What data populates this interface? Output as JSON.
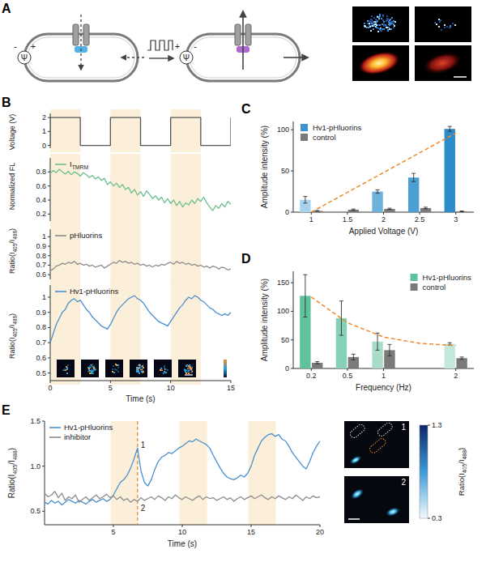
{
  "panel_labels": [
    "A",
    "B",
    "C",
    "D",
    "E"
  ],
  "schematic": {
    "minus": "-",
    "plus": "+",
    "potential": "Ψ"
  },
  "chart_data": [
    {
      "type": "line",
      "y_label": "Voltage (V)",
      "x": [
        0,
        0,
        2.5,
        2.5,
        5,
        5,
        7.5,
        7.5,
        10,
        10,
        12.5,
        12.5,
        15,
        15
      ],
      "series": [
        {
          "color": "#555555",
          "values": [
            0,
            2,
            2,
            0,
            0,
            2,
            2,
            0,
            0,
            2,
            2,
            0,
            0,
            2
          ]
        }
      ],
      "xlim": [
        0,
        15
      ],
      "ylim": [
        -0.2,
        2.3
      ],
      "yticks": [
        0,
        1,
        2
      ],
      "tick_labels": "y",
      "stimulus_intervals": [
        [
          0,
          2.5
        ],
        [
          5,
          7.5
        ],
        [
          10,
          12.5
        ]
      ]
    },
    {
      "type": "line",
      "y_label": "Normalized FL",
      "x": [
        0,
        0.25,
        0.5,
        0.75,
        1,
        1.25,
        1.5,
        1.75,
        2,
        2.25,
        2.5,
        2.75,
        3,
        3.25,
        3.5,
        3.75,
        4,
        4.25,
        4.5,
        4.75,
        5,
        5.25,
        5.5,
        5.75,
        6,
        6.25,
        6.5,
        6.75,
        7,
        7.25,
        7.5,
        7.75,
        8,
        8.25,
        8.5,
        8.75,
        9,
        9.25,
        9.5,
        9.75,
        10,
        10.25,
        10.5,
        10.75,
        11,
        11.25,
        11.5,
        11.75,
        12,
        12.25,
        12.5,
        12.75,
        13,
        13.25,
        13.5,
        13.75,
        14,
        14.25,
        14.5,
        14.75,
        15
      ],
      "series": [
        {
          "name": "ITMRM",
          "color": "#6cbf8f",
          "values": [
            0.78,
            0.82,
            0.79,
            0.84,
            0.8,
            0.77,
            0.81,
            0.76,
            0.8,
            0.78,
            0.74,
            0.79,
            0.76,
            0.72,
            0.75,
            0.7,
            0.73,
            0.68,
            0.71,
            0.62,
            0.66,
            0.6,
            0.64,
            0.58,
            0.62,
            0.55,
            0.58,
            0.5,
            0.55,
            0.47,
            0.52,
            0.45,
            0.53,
            0.48,
            0.42,
            0.46,
            0.4,
            0.44,
            0.36,
            0.42,
            0.35,
            0.4,
            0.32,
            0.38,
            0.3,
            0.36,
            0.33,
            0.4,
            0.35,
            0.42,
            0.38,
            0.44,
            0.36,
            0.3,
            0.25,
            0.32,
            0.28,
            0.35,
            0.3,
            0.38,
            0.34
          ]
        }
      ],
      "xlim": [
        0,
        15
      ],
      "ylim": [
        0.1,
        1.0
      ],
      "yticks": [
        0.2,
        0.4,
        0.6,
        0.8
      ],
      "tick_labels": "y",
      "legend": "upper left",
      "stimulus_intervals": [
        [
          0,
          2.5
        ],
        [
          5,
          7.5
        ],
        [
          10,
          12.5
        ]
      ]
    },
    {
      "type": "line",
      "y_label": "Ratio(I405/I488)",
      "x": [
        0,
        0.25,
        0.5,
        0.75,
        1,
        1.25,
        1.5,
        1.75,
        2,
        2.25,
        2.5,
        2.75,
        3,
        3.25,
        3.5,
        3.75,
        4,
        4.25,
        4.5,
        4.75,
        5,
        5.25,
        5.5,
        5.75,
        6,
        6.25,
        6.5,
        6.75,
        7,
        7.25,
        7.5,
        7.75,
        8,
        8.25,
        8.5,
        8.75,
        9,
        9.25,
        9.5,
        9.75,
        10,
        10.25,
        10.5,
        10.75,
        11,
        11.25,
        11.5,
        11.75,
        12,
        12.25,
        12.5,
        12.75,
        13,
        13.25,
        13.5,
        13.75,
        14,
        14.25,
        14.5,
        14.75,
        15
      ],
      "series": [
        {
          "name": "pHluorins",
          "color": "#8c8c8c",
          "values": [
            0.64,
            0.66,
            0.69,
            0.7,
            0.72,
            0.71,
            0.73,
            0.72,
            0.74,
            0.71,
            0.72,
            0.7,
            0.71,
            0.69,
            0.7,
            0.68,
            0.69,
            0.7,
            0.67,
            0.69,
            0.71,
            0.73,
            0.72,
            0.75,
            0.73,
            0.74,
            0.72,
            0.73,
            0.71,
            0.72,
            0.7,
            0.71,
            0.69,
            0.7,
            0.68,
            0.7,
            0.69,
            0.71,
            0.7,
            0.72,
            0.73,
            0.71,
            0.74,
            0.72,
            0.73,
            0.71,
            0.72,
            0.7,
            0.71,
            0.69,
            0.7,
            0.68,
            0.69,
            0.67,
            0.69,
            0.68,
            0.66,
            0.68,
            0.67,
            0.65,
            0.66
          ]
        }
      ],
      "xlim": [
        0,
        15
      ],
      "ylim": [
        0.55,
        1.08
      ],
      "yticks": [
        0.6,
        0.7,
        0.8,
        0.9,
        1
      ],
      "tick_labels": "y",
      "legend": "upper left",
      "stimulus_intervals": [
        [
          0,
          2.5
        ],
        [
          5,
          7.5
        ],
        [
          10,
          12.5
        ]
      ]
    },
    {
      "type": "line",
      "y_label": "Ratio(I405/I488)",
      "x_label": "Time (s)",
      "x": [
        0,
        0.25,
        0.5,
        0.75,
        1,
        1.25,
        1.5,
        1.75,
        2,
        2.25,
        2.5,
        2.75,
        3,
        3.25,
        3.5,
        3.75,
        4,
        4.25,
        4.5,
        4.75,
        5,
        5.25,
        5.5,
        5.75,
        6,
        6.25,
        6.5,
        6.75,
        7,
        7.25,
        7.5,
        7.75,
        8,
        8.25,
        8.5,
        8.75,
        9,
        9.25,
        9.5,
        9.75,
        10,
        10.25,
        10.5,
        10.75,
        11,
        11.25,
        11.5,
        11.75,
        12,
        12.25,
        12.5,
        12.75,
        13,
        13.25,
        13.5,
        13.75,
        14,
        14.25,
        14.5,
        14.75,
        15
      ],
      "series": [
        {
          "name": "Hv1-pHluorins",
          "color": "#4a90d0",
          "values": [
            0.7,
            0.76,
            0.82,
            0.86,
            0.9,
            0.92,
            0.96,
            0.98,
            0.99,
            0.97,
            0.98,
            0.95,
            0.92,
            0.9,
            0.87,
            0.85,
            0.83,
            0.81,
            0.8,
            0.79,
            0.82,
            0.86,
            0.9,
            0.93,
            0.95,
            0.97,
            0.99,
            1.0,
            1.01,
            0.99,
            0.98,
            0.96,
            0.93,
            0.9,
            0.88,
            0.86,
            0.84,
            0.83,
            0.82,
            0.81,
            0.84,
            0.87,
            0.9,
            0.93,
            0.95,
            0.98,
            1.0,
            0.99,
            1.01,
            1.0,
            0.98,
            0.97,
            0.95,
            0.93,
            0.92,
            0.9,
            0.89,
            0.88,
            0.89,
            0.88,
            0.9
          ]
        }
      ],
      "xlim": [
        0,
        15
      ],
      "ylim": [
        0.45,
        1.08
      ],
      "xticks": [
        0,
        5,
        10,
        15
      ],
      "yticks": [
        0.5,
        0.6,
        0.7,
        0.8,
        0.9,
        1
      ],
      "legend": "upper left",
      "stimulus_intervals": [
        [
          0,
          2.5
        ],
        [
          5,
          7.5
        ],
        [
          10,
          12.5
        ]
      ]
    },
    {
      "type": "bar",
      "y_label": "Amplitude intensity (%)",
      "x_label": "Applied Voltage (V)",
      "categories": [
        "1",
        "1.5",
        "2",
        "2.5",
        "3"
      ],
      "series": [
        {
          "name": "Hv1-pHluorins",
          "type": "bar",
          "color": "#3a93cf",
          "colors": [
            "#a8d3ee",
            "#8cc4e6",
            "#6db2dd",
            "#4d9fd3",
            "#2e8bc9"
          ],
          "values": [
            15,
            null,
            25,
            42,
            101
          ],
          "errors": [
            4,
            null,
            2,
            5,
            3
          ]
        },
        {
          "name": "control",
          "type": "bar",
          "color": "#7a7a7a",
          "values": [
            1.5,
            3,
            4,
            5,
            1
          ],
          "errors": [
            0.5,
            0.8,
            0.8,
            1,
            0.5
          ]
        },
        {
          "type": "line",
          "line_style": "dashed",
          "color": "#f0892b",
          "values": [
            0,
            24,
            48,
            72,
            96
          ]
        }
      ],
      "ylim": [
        0,
        110
      ],
      "yticks": [
        0,
        50,
        100
      ],
      "legend": "upper left"
    },
    {
      "type": "bar",
      "y_label": "Amplitude intensity (%)",
      "x_label": "Frequency (Hz)",
      "categories": [
        "0.2",
        "0.5",
        "1",
        null,
        "2"
      ],
      "series": [
        {
          "name": "Hv1-pHluorins",
          "type": "bar",
          "color": "#5ec29d",
          "colors": [
            "#5ec29d",
            "#86d1b5",
            "#a8dcc7",
            "#c4e8d9",
            "#c4e8d9"
          ],
          "values": [
            127,
            88,
            47,
            null,
            43
          ],
          "errors": [
            37,
            30,
            15,
            null,
            2
          ]
        },
        {
          "name": "control",
          "type": "bar",
          "color": "#7a7a7a",
          "values": [
            10,
            20,
            32,
            null,
            18
          ],
          "errors": [
            2,
            5,
            10,
            null,
            2
          ]
        },
        {
          "type": "line",
          "line_style": "dashed",
          "color": "#f0892b",
          "values": [
            125,
            80,
            55,
            44,
            40
          ]
        }
      ],
      "ylim": [
        0,
        170
      ],
      "yticks": [
        0,
        50,
        100,
        150
      ],
      "legend": "upper right"
    },
    {
      "type": "line",
      "y_label": "Ratio(I405/I488)",
      "x_label": "Time (s)",
      "x": [
        0,
        0.25,
        0.5,
        0.75,
        1,
        1.25,
        1.5,
        1.75,
        2,
        2.25,
        2.5,
        2.75,
        3,
        3.25,
        3.5,
        3.75,
        4,
        4.25,
        4.5,
        4.75,
        5,
        5.25,
        5.5,
        5.75,
        6,
        6.25,
        6.5,
        6.75,
        7,
        7.25,
        7.5,
        7.75,
        8,
        8.25,
        8.5,
        8.75,
        9,
        9.25,
        9.5,
        9.75,
        10,
        10.25,
        10.5,
        10.75,
        11,
        11.25,
        11.5,
        11.75,
        12,
        12.25,
        12.5,
        12.75,
        13,
        13.25,
        13.5,
        13.75,
        14,
        14.25,
        14.5,
        14.75,
        15,
        15.25,
        15.5,
        15.75,
        16,
        16.25,
        16.5,
        16.75,
        17,
        17.25,
        17.5,
        17.75,
        18,
        18.25,
        18.5,
        18.75,
        19,
        19.25,
        19.5,
        19.75,
        20
      ],
      "series": [
        {
          "name": "Hv1-pHluorins",
          "color": "#4a90d0",
          "values": [
            0.6,
            0.58,
            0.62,
            0.59,
            0.61,
            0.57,
            0.6,
            0.63,
            0.61,
            0.59,
            0.62,
            0.6,
            0.58,
            0.61,
            0.63,
            0.6,
            0.62,
            0.64,
            0.61,
            0.63,
            0.68,
            0.75,
            0.82,
            0.85,
            0.9,
            0.98,
            1.08,
            1.2,
            0.95,
            0.82,
            0.78,
            0.85,
            0.96,
            1.05,
            1.1,
            1.12,
            1.15,
            1.14,
            1.17,
            1.2,
            1.22,
            1.25,
            1.28,
            1.27,
            1.3,
            1.28,
            1.26,
            1.24,
            1.2,
            1.12,
            1.05,
            0.98,
            0.92,
            0.88,
            0.86,
            0.85,
            0.87,
            0.9,
            0.88,
            0.92,
            1.0,
            1.12,
            1.2,
            1.28,
            1.32,
            1.35,
            1.36,
            1.33,
            1.35,
            1.3,
            1.28,
            1.22,
            1.15,
            1.1,
            1.05,
            1.0,
            0.97,
            1.05,
            1.15,
            1.22,
            1.28
          ]
        },
        {
          "name": "inhibitor",
          "color": "#8c8c8c",
          "values": [
            0.7,
            0.66,
            0.68,
            0.72,
            0.65,
            0.7,
            0.62,
            0.66,
            0.64,
            0.68,
            0.6,
            0.63,
            0.66,
            0.62,
            0.65,
            0.68,
            0.64,
            0.66,
            0.69,
            0.65,
            0.67,
            0.63,
            0.66,
            0.62,
            0.64,
            0.6,
            0.63,
            0.61,
            0.65,
            0.62,
            0.64,
            0.66,
            0.63,
            0.67,
            0.65,
            0.62,
            0.66,
            0.64,
            0.68,
            0.65,
            0.63,
            0.66,
            0.64,
            0.62,
            0.65,
            0.67,
            0.63,
            0.66,
            0.64,
            0.65,
            0.62,
            0.64,
            0.66,
            0.63,
            0.65,
            0.61,
            0.64,
            0.66,
            0.63,
            0.65,
            0.67,
            0.64,
            0.66,
            0.68,
            0.65,
            0.63,
            0.66,
            0.64,
            0.67,
            0.65,
            0.63,
            0.66,
            0.64,
            0.68,
            0.65,
            0.62,
            0.66,
            0.64,
            0.67,
            0.65,
            0.66
          ]
        }
      ],
      "xlim": [
        0,
        20
      ],
      "ylim": [
        0.35,
        1.5
      ],
      "xticks": [
        5,
        10,
        15,
        20
      ],
      "yticks": [
        0.5,
        {
          "value": 1,
          "label": "1.0"
        },
        1.5
      ],
      "legend": "upper left",
      "stimulus_intervals": [
        [
          4.8,
          6.8
        ],
        [
          9.8,
          11.8
        ],
        [
          14.8,
          16.8
        ]
      ],
      "reference_line_x": 6.75,
      "annotations": [
        {
          "text": "1",
          "x": 6.75,
          "y": 1.2
        },
        {
          "text": "2",
          "x": 6.75,
          "y": 0.5
        }
      ],
      "images": [
        {
          "label": "1"
        },
        {
          "label": "2"
        }
      ],
      "colorbar": {
        "title": "Ratio(I405/I488)",
        "range": [
          0.3,
          1.3
        ],
        "ticks": [
          0.3,
          1.3
        ]
      }
    }
  ]
}
